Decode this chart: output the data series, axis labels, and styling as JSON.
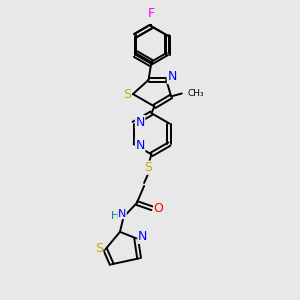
{
  "background_color": "#e8e8e8",
  "atom_colors": {
    "C": "#000000",
    "N": "#0000ff",
    "S": "#ccaa00",
    "O": "#ff0000",
    "F": "#ff00ff",
    "H": "#008080"
  },
  "lw": 1.4,
  "fs": 8.0,
  "figsize": [
    3.0,
    3.0
  ],
  "dpi": 100
}
